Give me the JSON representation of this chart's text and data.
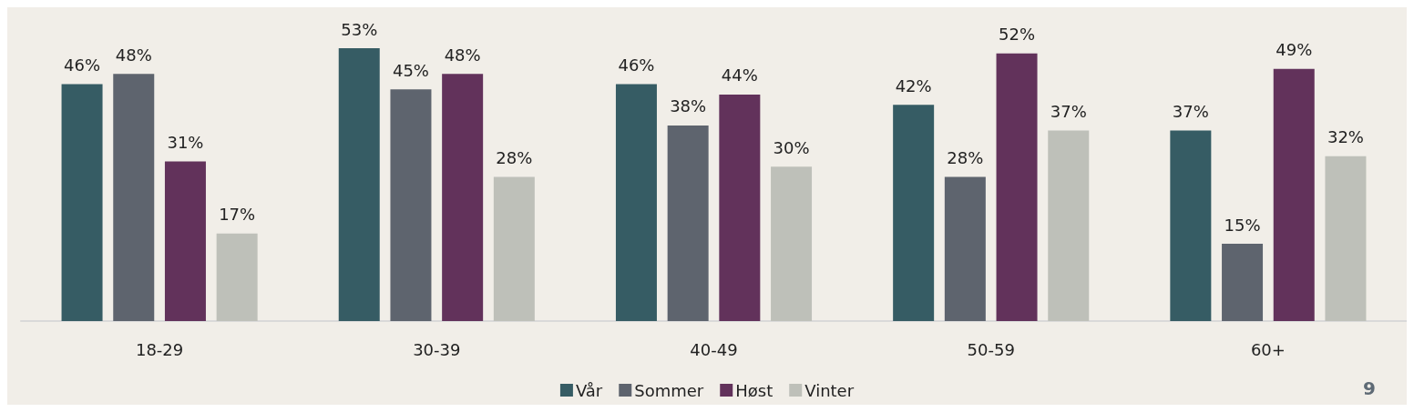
{
  "chart_data": {
    "type": "bar",
    "categories": [
      "18-29",
      "30-39",
      "40-49",
      "50-59",
      "60+"
    ],
    "series": [
      {
        "name": "Vår",
        "color": "#365c64",
        "values": [
          46,
          53,
          46,
          42,
          37
        ],
        "value_labels": [
          "46%",
          "53%",
          "46%",
          "42%",
          "37%"
        ]
      },
      {
        "name": "Sommer",
        "color": "#5e646e",
        "values": [
          48,
          45,
          38,
          28,
          15
        ],
        "value_labels": [
          "48%",
          "45%",
          "38%",
          "28%",
          "15%"
        ]
      },
      {
        "name": "Høst",
        "color": "#62325b",
        "values": [
          31,
          48,
          44,
          52,
          49
        ],
        "value_labels": [
          "31%",
          "48%",
          "44%",
          "52%",
          "49%"
        ]
      },
      {
        "name": "Vinter",
        "color": "#bec0b9",
        "values": [
          17,
          28,
          30,
          37,
          32
        ],
        "value_labels": [
          "17%",
          "28%",
          "30%",
          "37%",
          "32%"
        ]
      }
    ],
    "legend": "bottom",
    "grid": false,
    "annotations": [
      "9"
    ]
  }
}
